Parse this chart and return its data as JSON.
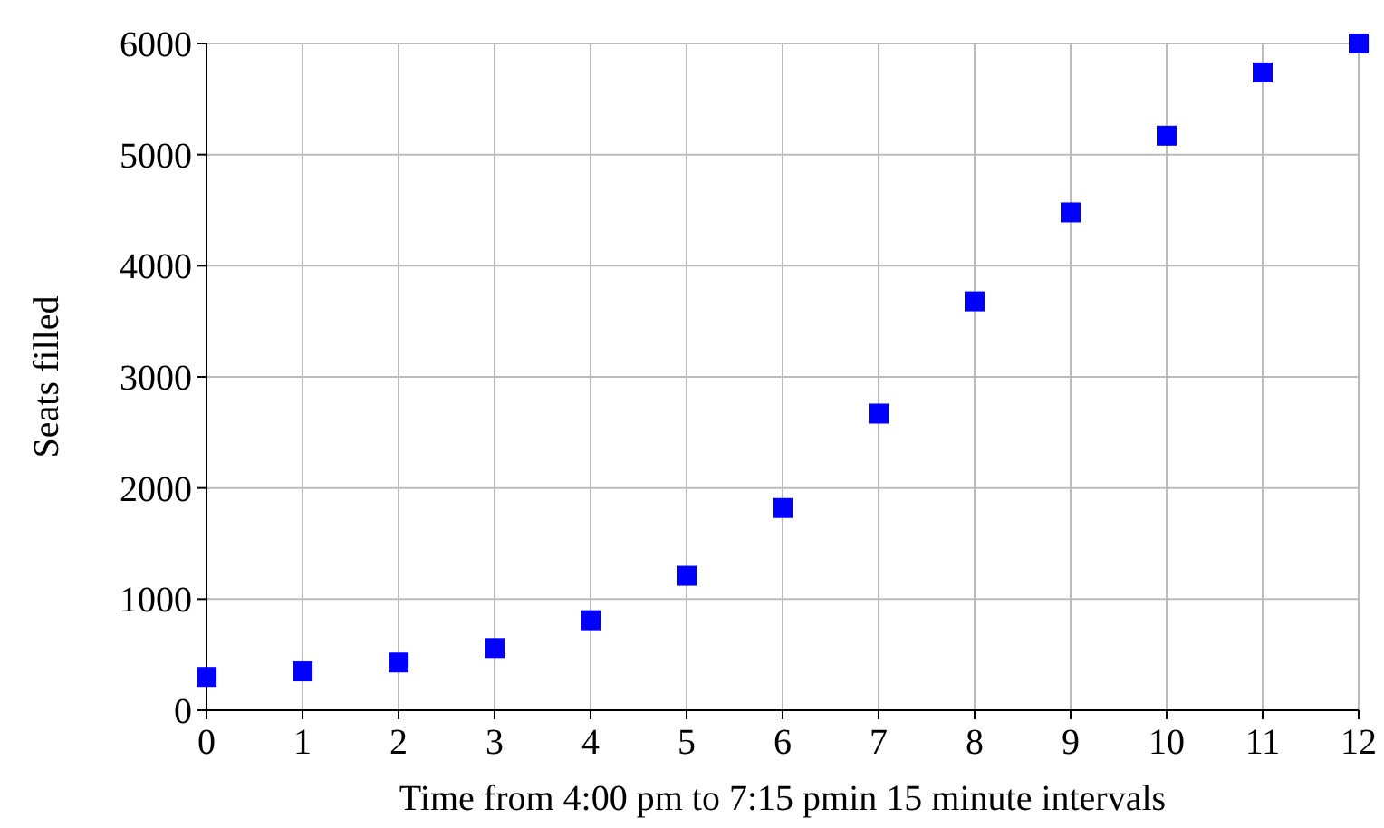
{
  "chart_data": {
    "type": "scatter",
    "xlabel": "Time from 4:00 pm to 7:15 pmin 15 minute intervals",
    "ylabel": "Seats filled",
    "x": [
      0,
      1,
      2,
      3,
      4,
      5,
      6,
      7,
      8,
      9,
      10,
      11,
      12
    ],
    "series": [
      {
        "color": "#0000ff",
        "values": [
          300,
          350,
          430,
          560,
          810,
          1210,
          1820,
          2670,
          3680,
          4480,
          5170,
          5740,
          6000
        ]
      }
    ],
    "xlim": [
      0,
      12
    ],
    "xticks": [
      0,
      1,
      2,
      3,
      4,
      5,
      6,
      7,
      8,
      9,
      10,
      11,
      12
    ],
    "ylim": [
      0,
      6000
    ],
    "yticks": [
      0,
      1000,
      2000,
      3000,
      4000,
      5000,
      6000
    ],
    "grid": true,
    "marker": "square"
  }
}
